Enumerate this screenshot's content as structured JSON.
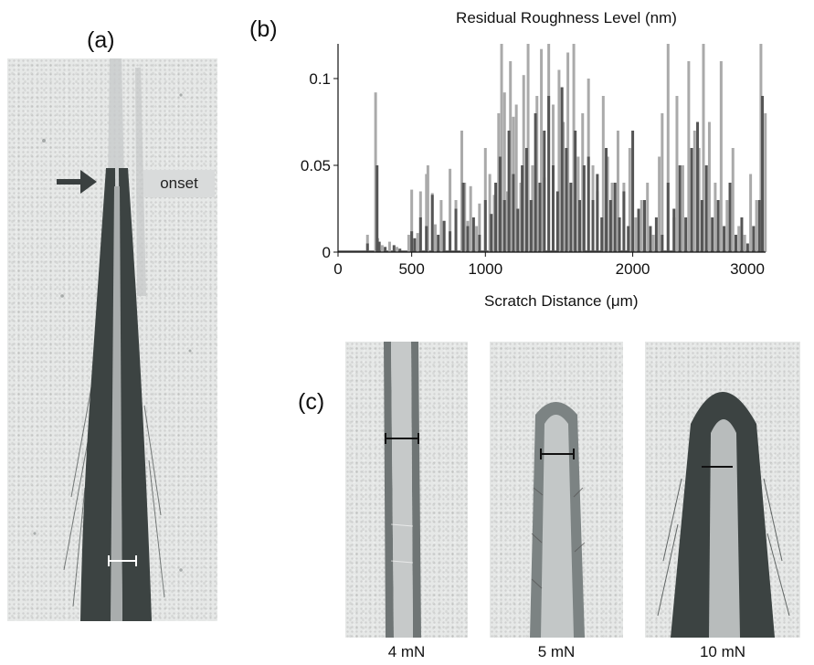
{
  "panels": {
    "a": {
      "label": "(a)",
      "annotation": "onset"
    },
    "b": {
      "label": "(b)"
    },
    "c": {
      "label": "(c)",
      "captions": [
        "4 mN",
        "5 mN",
        "10 mN"
      ]
    }
  },
  "chart_data": {
    "type": "bar",
    "title": "Residual Roughness Level (nm)",
    "xlabel": "Scratch Distance (μm)",
    "ylabel": "",
    "xlim": [
      0,
      3100
    ],
    "ylim": [
      0,
      0.12
    ],
    "xticks": [
      0,
      500,
      1000,
      2000,
      3000
    ],
    "yticks": [
      0,
      0.05,
      0.1
    ],
    "ytick_labels": [
      "0",
      "0.05",
      "0.1"
    ],
    "grid": false,
    "series": [
      {
        "color": "#aaaaaa",
        "x": [
          200,
          255,
          270,
          300,
          350,
          400,
          480,
          500,
          540,
          560,
          600,
          610,
          640,
          660,
          700,
          720,
          760,
          800,
          840,
          860,
          880,
          900,
          940,
          960,
          1000,
          1030,
          1060,
          1090,
          1110,
          1130,
          1150,
          1170,
          1190,
          1210,
          1240,
          1260,
          1290,
          1320,
          1350,
          1380,
          1400,
          1430,
          1460,
          1500,
          1530,
          1560,
          1600,
          1630,
          1660,
          1700,
          1730,
          1760,
          1800,
          1830,
          1860,
          1900,
          1940,
          1980,
          2020,
          2060,
          2100,
          2140,
          2180,
          2200,
          2240,
          2280,
          2300,
          2340,
          2380,
          2420,
          2450,
          2480,
          2520,
          2560,
          2600,
          2640,
          2680,
          2720,
          2760,
          2800,
          2840,
          2870,
          2900,
          2940,
          2980,
          3020,
          3050
        ],
        "values": [
          0.01,
          0.092,
          0.008,
          0.004,
          0.006,
          0.003,
          0.01,
          0.036,
          0.011,
          0.035,
          0.045,
          0.05,
          0.034,
          0.016,
          0.03,
          0.018,
          0.048,
          0.03,
          0.07,
          0.04,
          0.018,
          0.038,
          0.015,
          0.028,
          0.06,
          0.045,
          0.033,
          0.08,
          0.12,
          0.092,
          0.035,
          0.11,
          0.078,
          0.085,
          0.04,
          0.102,
          0.12,
          0.05,
          0.09,
          0.117,
          0.043,
          0.12,
          0.085,
          0.105,
          0.075,
          0.115,
          0.12,
          0.055,
          0.08,
          0.1,
          0.05,
          0.035,
          0.09,
          0.055,
          0.04,
          0.07,
          0.04,
          0.06,
          0.02,
          0.03,
          0.04,
          0.01,
          0.055,
          0.08,
          0.12,
          0.02,
          0.09,
          0.05,
          0.11,
          0.07,
          0.06,
          0.12,
          0.075,
          0.04,
          0.11,
          0.03,
          0.06,
          0.015,
          0.01,
          0.045,
          0.03,
          0.12,
          0.08,
          0.06,
          0.03,
          0.02,
          0.04
        ]
      },
      {
        "color": "#555555",
        "x": [
          200,
          265,
          280,
          320,
          380,
          420,
          500,
          520,
          560,
          600,
          640,
          680,
          720,
          760,
          800,
          850,
          880,
          920,
          960,
          1000,
          1040,
          1070,
          1100,
          1130,
          1160,
          1190,
          1220,
          1250,
          1280,
          1310,
          1340,
          1370,
          1400,
          1430,
          1460,
          1490,
          1520,
          1550,
          1580,
          1610,
          1640,
          1670,
          1700,
          1730,
          1760,
          1790,
          1820,
          1850,
          1880,
          1910,
          1940,
          1970,
          2000,
          2040,
          2080,
          2120,
          2160,
          2200,
          2240,
          2280,
          2320,
          2360,
          2400,
          2440,
          2470,
          2500,
          2540,
          2580,
          2620,
          2660,
          2700,
          2740,
          2780,
          2820,
          2860,
          2880,
          2920,
          2960,
          3000,
          3040,
          3070
        ],
        "values": [
          0.005,
          0.05,
          0.006,
          0.003,
          0.004,
          0.002,
          0.012,
          0.008,
          0.02,
          0.015,
          0.033,
          0.01,
          0.018,
          0.012,
          0.025,
          0.04,
          0.015,
          0.02,
          0.01,
          0.03,
          0.022,
          0.04,
          0.055,
          0.03,
          0.07,
          0.045,
          0.025,
          0.05,
          0.06,
          0.03,
          0.08,
          0.04,
          0.07,
          0.09,
          0.05,
          0.035,
          0.095,
          0.06,
          0.04,
          0.07,
          0.03,
          0.05,
          0.055,
          0.03,
          0.045,
          0.02,
          0.06,
          0.03,
          0.04,
          0.02,
          0.035,
          0.015,
          0.07,
          0.025,
          0.03,
          0.015,
          0.02,
          0.01,
          0.04,
          0.025,
          0.05,
          0.02,
          0.06,
          0.075,
          0.03,
          0.05,
          0.02,
          0.03,
          0.015,
          0.04,
          0.01,
          0.02,
          0.005,
          0.015,
          0.03,
          0.09,
          0.05,
          0.03,
          0.015,
          0.01,
          0.02
        ]
      }
    ]
  }
}
